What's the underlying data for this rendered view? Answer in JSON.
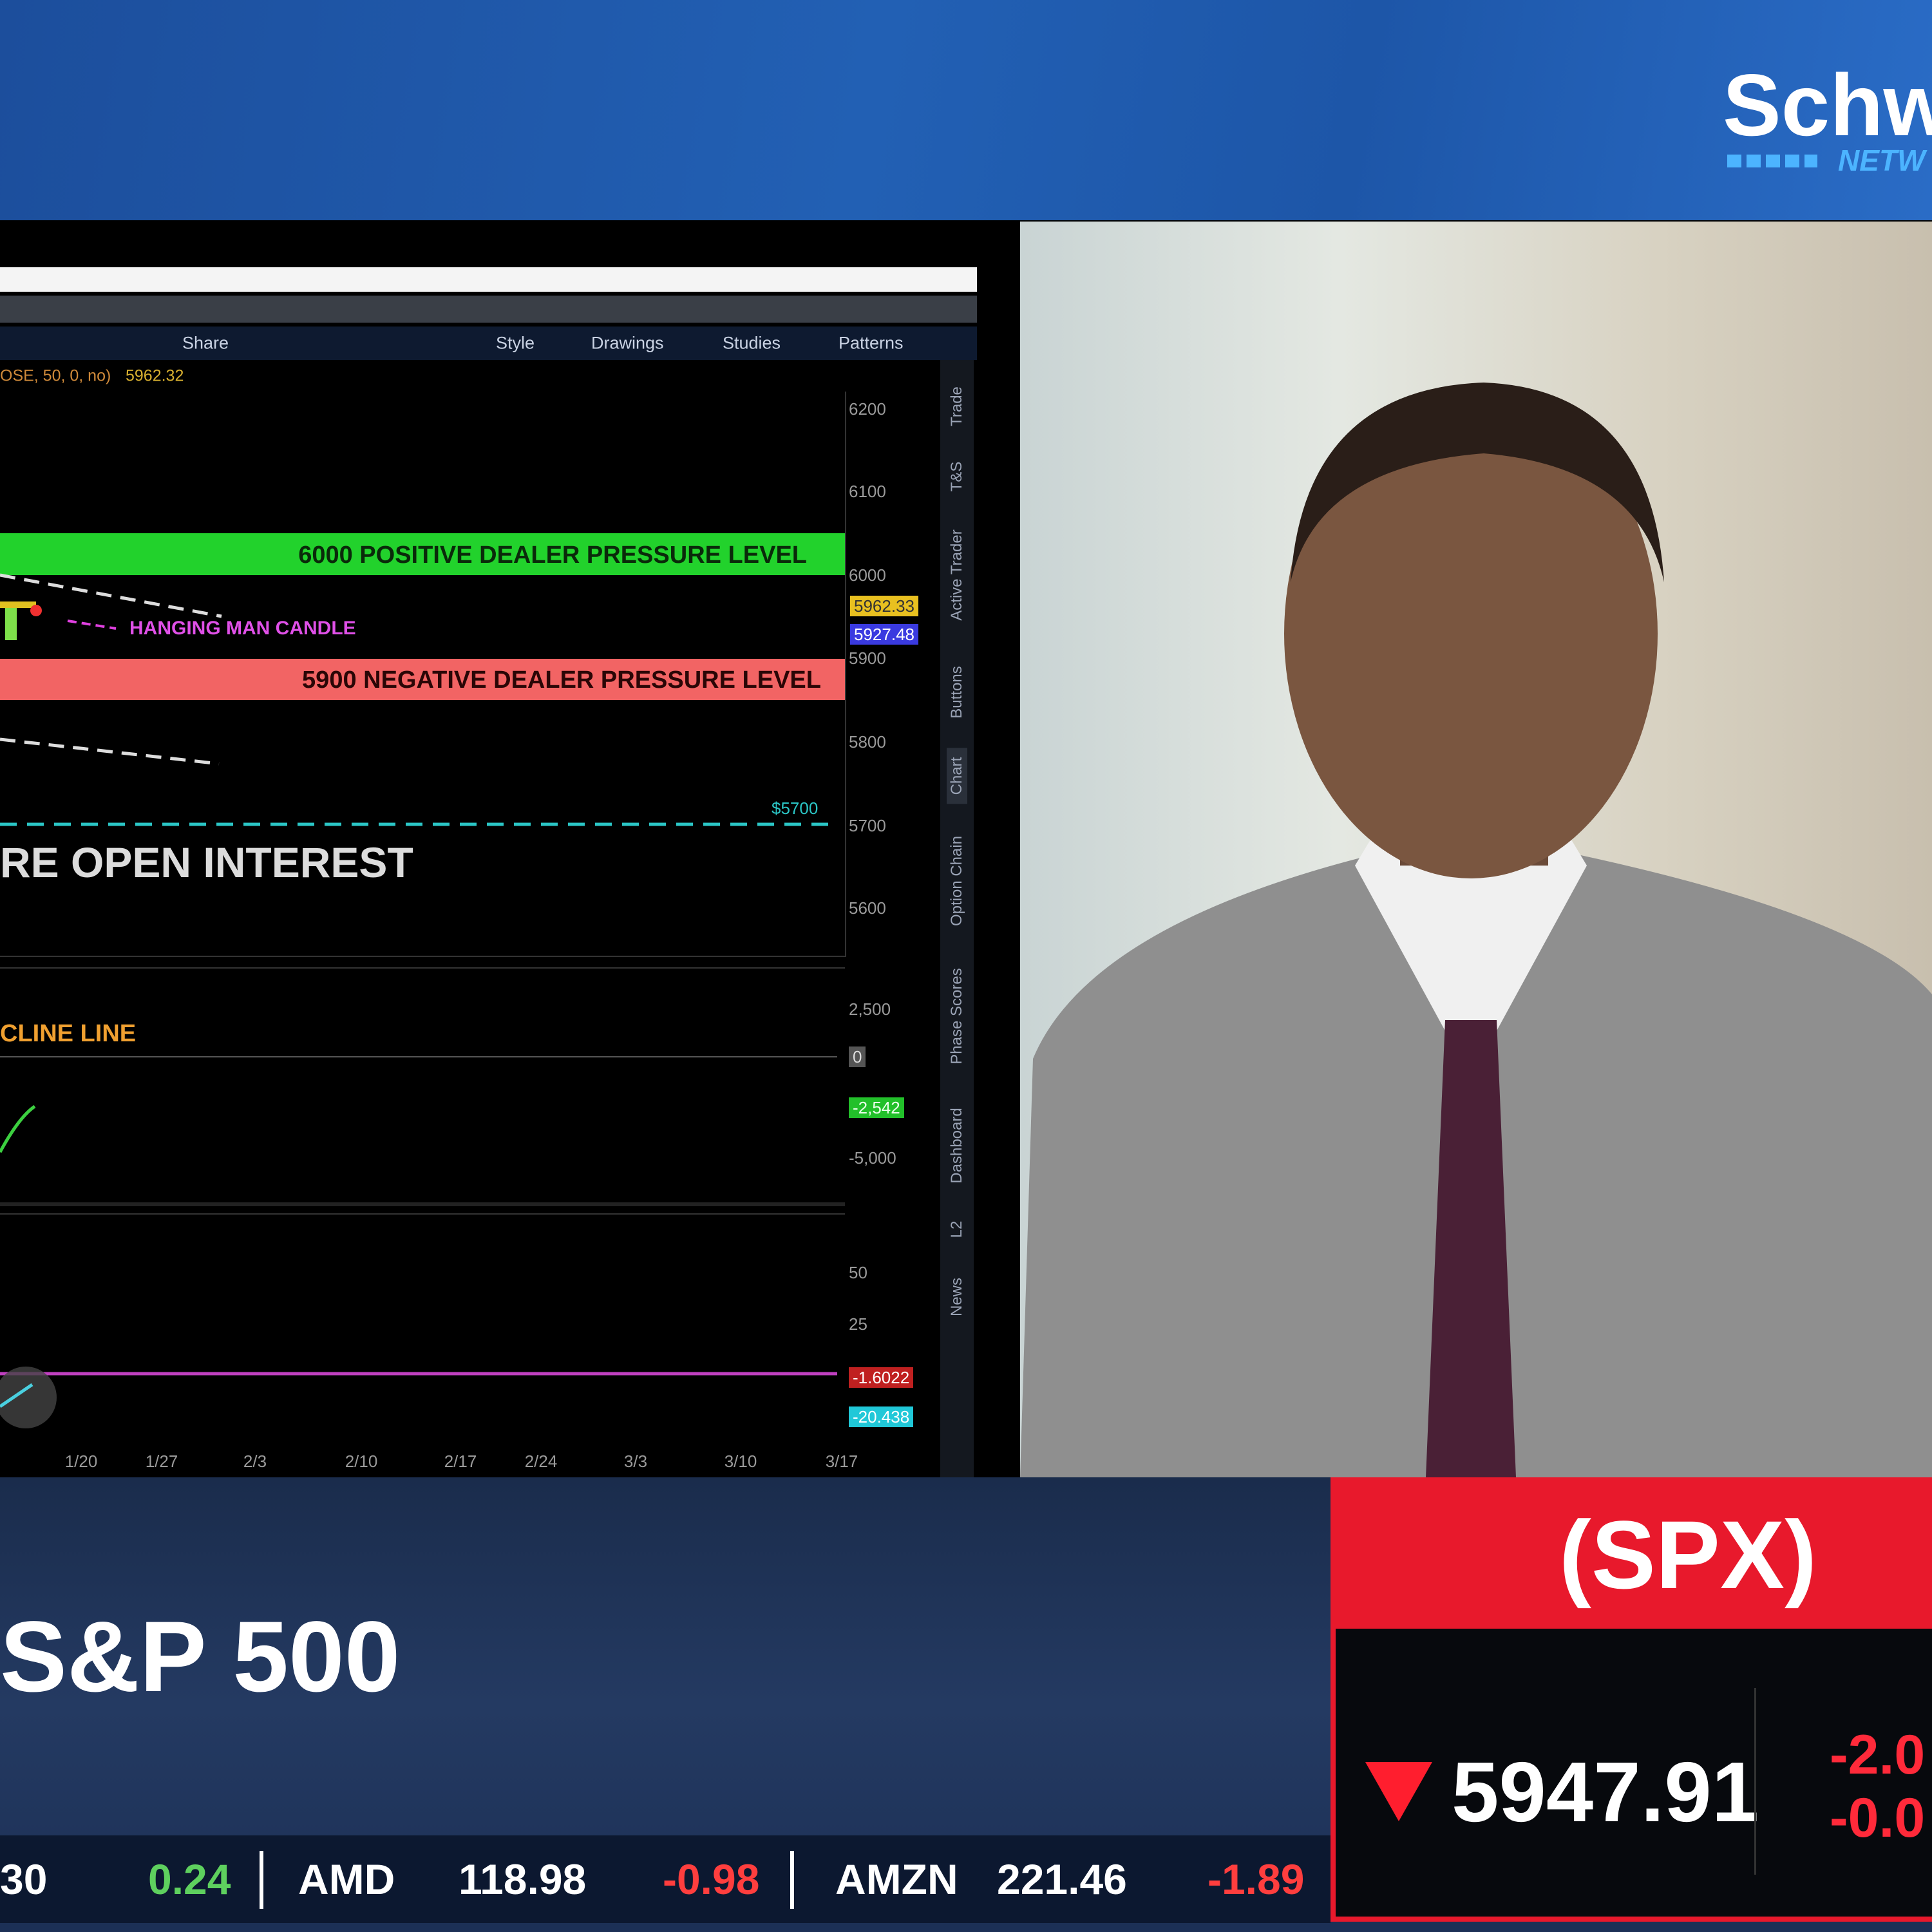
{
  "header": {
    "logo": "Schw",
    "logo_sub": "NETW"
  },
  "platform": {
    "toolbar": [
      "Share",
      "Style",
      "Drawings",
      "Studies",
      "Patterns"
    ],
    "study_label": "OSE, 50, 0, no)",
    "study_value": "5962.32",
    "price_axis": [
      "6200",
      "6100",
      "6000",
      "5900",
      "5800",
      "5700",
      "5600"
    ],
    "price_tags": [
      "5962.33",
      "5927.48"
    ],
    "annotations": {
      "positive_level": "6000 POSITIVE DEALER PRESSURE LEVEL",
      "hanging_man": "HANGING MAN CANDLE",
      "negative_level": "5900 NEGATIVE DEALER PRESSURE LEVEL",
      "level_tag": "$5700",
      "open_interest": "RE OPEN INTEREST",
      "decline_line": "CLINE LINE"
    },
    "panel2_axis": [
      "2,500",
      "0",
      "-2,542",
      "-5,000"
    ],
    "panel3_axis": [
      "50",
      "25",
      "-1.6022",
      "-20.438"
    ],
    "dates": [
      "1/20",
      "1/27",
      "2/3",
      "2/10",
      "2/17",
      "2/24",
      "3/3",
      "3/10",
      "3/17"
    ],
    "side_tabs": [
      "Trade",
      "T&S",
      "Active Trader",
      "Buttons",
      "Chart",
      "Option Chain",
      "Phase Scores",
      "Dashboard",
      "L2",
      "News"
    ]
  },
  "lower_third": {
    "title": "S&P 500",
    "symbol": "(SPX)",
    "price": "5947.91",
    "change": "-2.0",
    "change_pct": "-0.0"
  },
  "ticker": [
    "30",
    "0.24",
    "AMD",
    "118.98",
    "-0.98",
    "AMZN",
    "221.46",
    "-1.89"
  ]
}
